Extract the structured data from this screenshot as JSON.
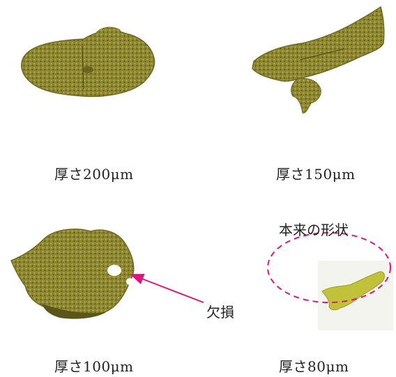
{
  "colors": {
    "sample": "#8d8630",
    "sample_dark": "#5a551a",
    "sample_light": "#b3ab48",
    "sample_80": "#c2c23a",
    "annotation": "#e0147c"
  },
  "panels": [
    {
      "caption": "厚さ200μm",
      "image": "reconstruction-200um"
    },
    {
      "caption": "厚さ150μm",
      "image": "reconstruction-150um"
    },
    {
      "caption": "厚さ100μm",
      "image": "reconstruction-100um"
    },
    {
      "caption": "厚さ80μm",
      "image": "reconstruction-80um"
    }
  ],
  "annotations": {
    "defect_label": "欠損",
    "original_shape_label": "本来の形状"
  }
}
